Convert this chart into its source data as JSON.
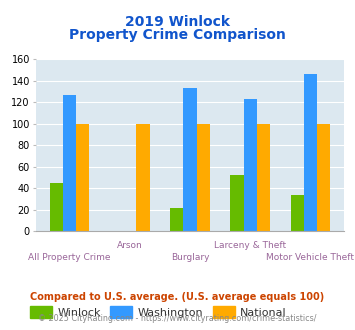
{
  "title_line1": "2019 Winlock",
  "title_line2": "Property Crime Comparison",
  "categories": [
    "All Property Crime",
    "Arson",
    "Burglary",
    "Larceny & Theft",
    "Motor Vehicle Theft"
  ],
  "winlock": [
    45,
    0,
    21,
    52,
    34
  ],
  "washington": [
    127,
    0,
    133,
    123,
    146
  ],
  "national": [
    100,
    100,
    100,
    100,
    100
  ],
  "winlock_color": "#66bb00",
  "washington_color": "#3399ff",
  "national_color": "#ffaa00",
  "title_color": "#1155cc",
  "xlabel_color": "#996699",
  "ylim": [
    0,
    160
  ],
  "yticks": [
    0,
    20,
    40,
    60,
    80,
    100,
    120,
    140,
    160
  ],
  "footnote1": "Compared to U.S. average. (U.S. average equals 100)",
  "footnote2": "© 2025 CityRating.com - https://www.cityrating.com/crime-statistics/",
  "footnote1_color": "#cc4400",
  "footnote2_color": "#888888",
  "plot_bg_color": "#dce8f0",
  "bar_width": 0.22,
  "legend_labels": [
    "Winlock",
    "Washington",
    "National"
  ],
  "line1_labels": [
    "",
    "Arson",
    "",
    "Larceny & Theft",
    ""
  ],
  "line2_labels": [
    "All Property Crime",
    "",
    "Burglary",
    "",
    "Motor Vehicle Theft"
  ]
}
